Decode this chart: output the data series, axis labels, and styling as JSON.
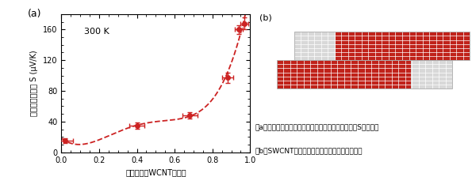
{
  "x_data": [
    0.02,
    0.4,
    0.68,
    0.88,
    0.94,
    0.97
  ],
  "y_data": [
    15,
    35,
    48,
    97,
    160,
    168
  ],
  "x_err": [
    0.04,
    0.04,
    0.04,
    0.03,
    0.02,
    0.02
  ],
  "y_err": [
    3,
    4,
    4,
    7,
    6,
    8
  ],
  "xlabel": "半導体型スWCNTの比率",
  "ylabel": "ゼーベック係数 S (μV/K)",
  "label_300K": "300 K",
  "label_a": "(a)",
  "label_b": "(b)",
  "text_a": "（a）半導体型ナノチューブの割合とゼーベック係数Sの関係。",
  "text_b": "（b）SWCNT随結合部の電子状態の様子（例）。",
  "dot_color": "#cc2222",
  "line_color": "#cc2222",
  "ylim": [
    0,
    180
  ],
  "xlim": [
    0,
    1.0
  ],
  "yticks": [
    0,
    40,
    80,
    120,
    160
  ],
  "xticks": [
    0,
    0.2,
    0.4,
    0.6,
    0.8,
    1.0
  ],
  "cnt_red": "#c0221a",
  "cnt_gray": "#d8d8d8",
  "cnt_white_line": "#ffffff"
}
